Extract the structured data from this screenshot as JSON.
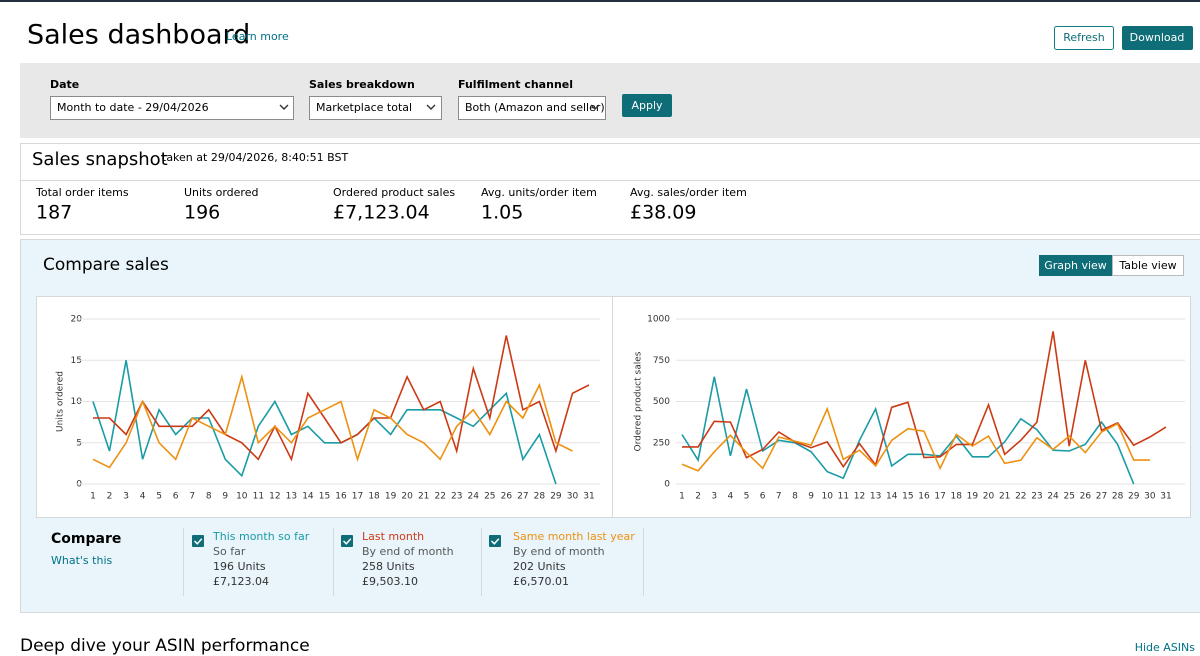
{
  "header": {
    "title": "Sales dashboard",
    "learn_more": "Learn more",
    "buttons": [
      "Refresh",
      "Download"
    ]
  },
  "filters": {
    "fields": [
      {
        "label": "Date",
        "value": "Month to date - 29/04/2026"
      },
      {
        "label": "Sales breakdown",
        "value": "Marketplace total"
      },
      {
        "label": "Fulfilment channel",
        "value": "Both (Amazon and seller)"
      }
    ],
    "apply": "Apply"
  },
  "snapshot": {
    "title": "Sales snapshot",
    "taken": "taken at 29/04/2026, 8:40:51 BST",
    "metrics": [
      {
        "label": "Total order items",
        "value": "187"
      },
      {
        "label": "Units ordered",
        "value": "196"
      },
      {
        "label": "Ordered product sales",
        "value": "£7,123.04"
      },
      {
        "label": "Avg. units/order item",
        "value": "1.05"
      },
      {
        "label": "Avg. sales/order item",
        "value": "£38.09"
      }
    ]
  },
  "compare_sales": {
    "title": "Compare sales",
    "views": [
      "Graph view",
      "Table view"
    ]
  },
  "compare": {
    "title": "Compare",
    "whats_this": "What's this",
    "items": [
      {
        "period": "So far",
        "units": "196 Units",
        "sales": "£7,123.04"
      },
      {
        "period": "By end of month",
        "units": "258 Units",
        "sales": "£9,503.10"
      },
      {
        "period": "By end of month",
        "units": "202 Units",
        "sales": "£6,570.01"
      }
    ]
  },
  "footer": {
    "title": "Deep dive your ASIN performance",
    "hide": "Hide ASINs"
  },
  "chart_data": [
    {
      "type": "line",
      "y_label": "Units ordered",
      "x": [
        1,
        2,
        3,
        4,
        5,
        6,
        7,
        8,
        9,
        10,
        11,
        12,
        13,
        14,
        15,
        16,
        17,
        18,
        19,
        20,
        21,
        22,
        23,
        24,
        25,
        26,
        27,
        28,
        29,
        30,
        31
      ],
      "xlim": [
        1,
        31
      ],
      "xticks": [
        1,
        2,
        3,
        4,
        5,
        6,
        7,
        8,
        9,
        10,
        11,
        12,
        13,
        14,
        15,
        16,
        17,
        18,
        19,
        20,
        21,
        22,
        23,
        24,
        25,
        26,
        27,
        28,
        29,
        30,
        31
      ],
      "ylim": [
        0,
        20
      ],
      "yticks": [
        0,
        5,
        10,
        15,
        20
      ],
      "grid": true,
      "series": [
        {
          "name": "This month so far",
          "color": "#1a9ba6",
          "values": [
            10,
            4,
            15,
            3,
            9,
            6,
            8,
            8,
            3,
            1,
            7,
            10,
            6,
            7,
            5,
            5,
            6,
            8,
            6,
            9,
            9,
            9,
            8,
            7,
            9,
            11,
            3,
            6,
            0,
            null,
            null
          ]
        },
        {
          "name": "Last month",
          "color": "#cc3a15",
          "values": [
            8,
            8,
            6,
            10,
            7,
            7,
            7,
            9,
            6,
            5,
            3,
            7,
            3,
            11,
            8,
            5,
            6,
            8,
            8,
            13,
            9,
            10,
            4,
            14,
            8,
            18,
            9,
            10,
            4,
            11,
            12
          ]
        },
        {
          "name": "Same month last year",
          "color": "#ee9110",
          "values": [
            3,
            2,
            5,
            10,
            5,
            3,
            8,
            7,
            6,
            13,
            5,
            7,
            5,
            8,
            9,
            10,
            3,
            9,
            8,
            6,
            5,
            3,
            7,
            9,
            6,
            10,
            8,
            12,
            5,
            4,
            null
          ]
        }
      ]
    },
    {
      "type": "line",
      "y_label": "Ordered product sales",
      "x": [
        1,
        2,
        3,
        4,
        5,
        6,
        7,
        8,
        9,
        10,
        11,
        12,
        13,
        14,
        15,
        16,
        17,
        18,
        19,
        20,
        21,
        22,
        23,
        24,
        25,
        26,
        27,
        28,
        29,
        30,
        31
      ],
      "xlim": [
        1,
        31
      ],
      "xticks": [
        1,
        2,
        3,
        4,
        5,
        6,
        7,
        8,
        9,
        10,
        11,
        12,
        13,
        14,
        15,
        16,
        17,
        18,
        19,
        20,
        21,
        22,
        23,
        24,
        25,
        26,
        27,
        28,
        29,
        30,
        31
      ],
      "ylim": [
        0,
        1000
      ],
      "yticks": [
        0,
        250,
        500,
        750,
        1000
      ],
      "grid": true,
      "series": [
        {
          "name": "This month so far",
          "color": "#1a9ba6",
          "values": [
            300,
            145,
            650,
            170,
            575,
            200,
            265,
            250,
            195,
            75,
            35,
            265,
            455,
            110,
            180,
            180,
            170,
            290,
            165,
            165,
            255,
            395,
            330,
            205,
            200,
            240,
            375,
            240,
            0,
            null,
            null
          ]
        },
        {
          "name": "Last month",
          "color": "#cc3a15",
          "values": [
            225,
            225,
            380,
            375,
            160,
            210,
            315,
            255,
            220,
            255,
            105,
            245,
            115,
            465,
            495,
            160,
            165,
            240,
            240,
            480,
            180,
            265,
            375,
            925,
            230,
            750,
            325,
            370,
            235,
            285,
            345
          ]
        },
        {
          "name": "Same month last year",
          "color": "#ee9110",
          "values": [
            120,
            80,
            195,
            295,
            190,
            95,
            285,
            260,
            235,
            455,
            150,
            205,
            110,
            265,
            335,
            320,
            95,
            300,
            230,
            290,
            125,
            145,
            280,
            210,
            290,
            190,
            315,
            365,
            145,
            145,
            null
          ]
        }
      ]
    }
  ]
}
